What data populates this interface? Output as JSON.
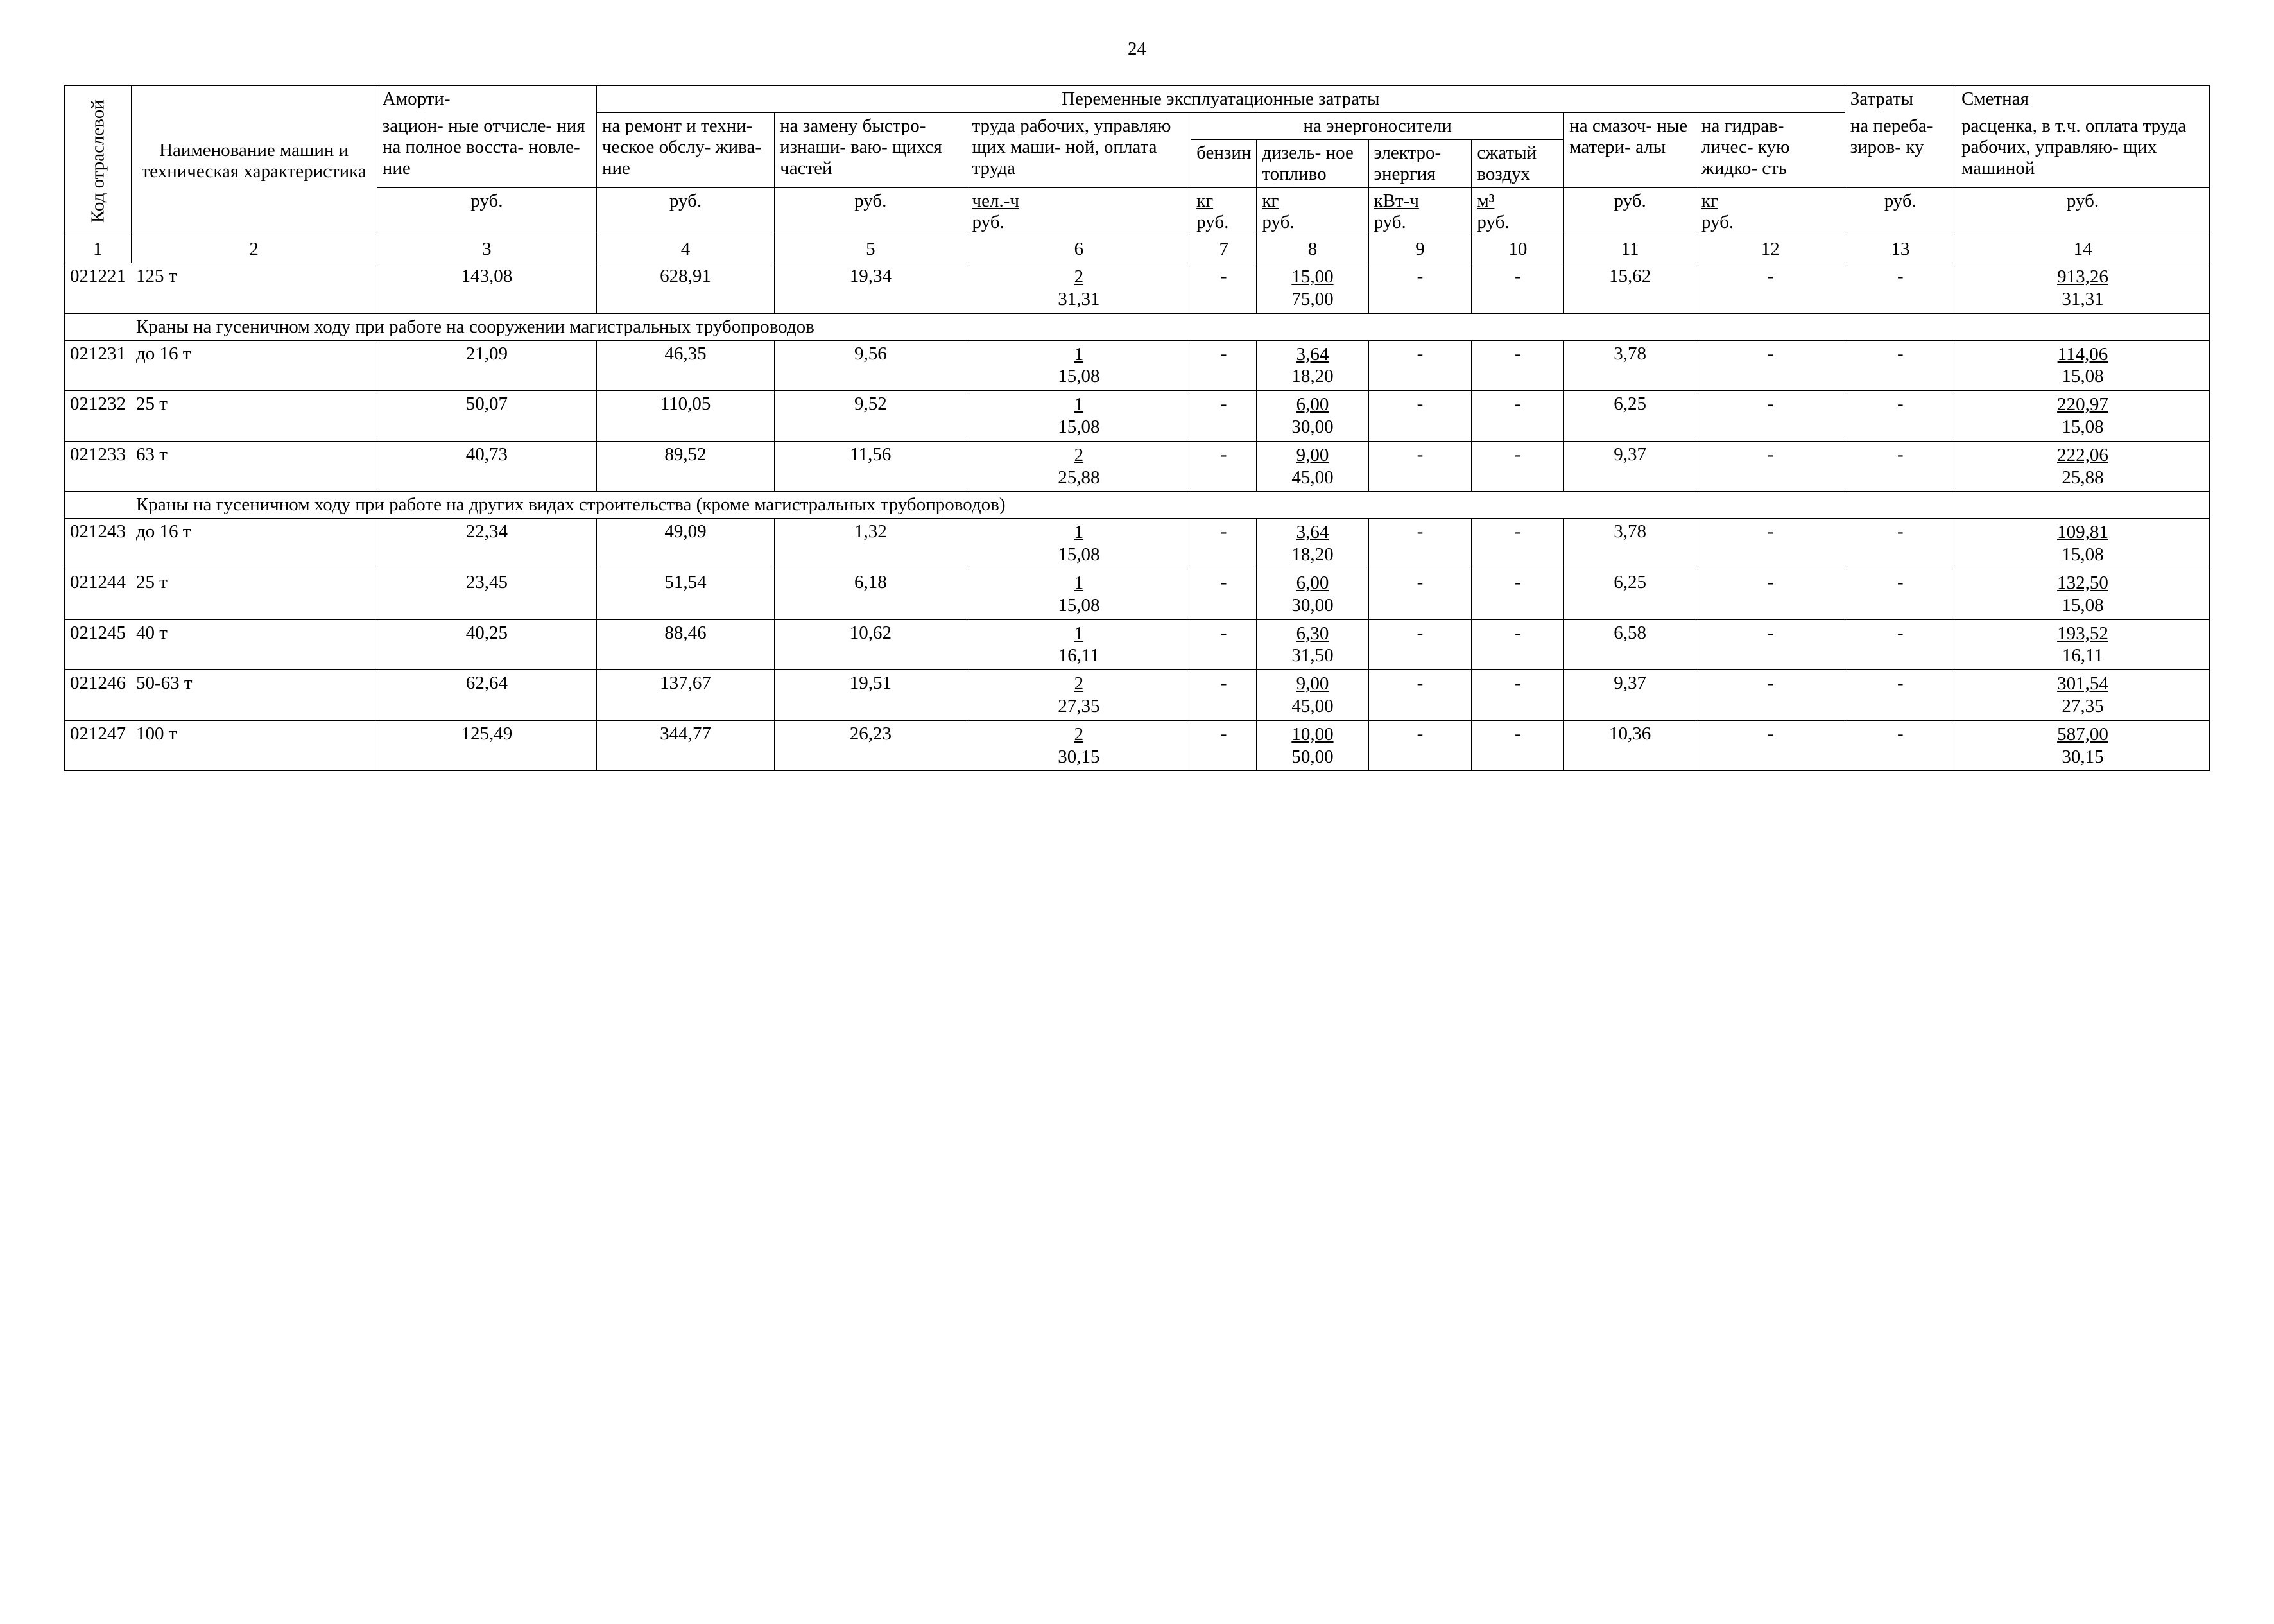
{
  "pageNumber": "24",
  "header": {
    "c1": "Код отраслевой",
    "c2": "Наименование машин и техническая характеристика",
    "c3_top": "Аморти-",
    "c3": "зацион- ные отчисле- ния на полное восста- новле- ние",
    "c3_unit": "руб.",
    "variable_costs": "Переменные эксплуатационные затраты",
    "c4": "на ремонт и техни- ческое обслу- жива- ние",
    "c4_unit": "руб.",
    "c5": "на замену быстро- изнаши- ваю- щихся частей",
    "c5_unit": "руб.",
    "c6": "труда рабочих, управляю щих маши- ной, оплата труда",
    "c6_unit_top": "чел.-ч",
    "c6_unit_bot": "руб.",
    "energy": "на энергоносители",
    "c7": "бензин",
    "c7_unit_top": "кг",
    "c7_unit_bot": "руб.",
    "c8": "дизель- ное топливо",
    "c8_unit_top": "кг",
    "c8_unit_bot": "руб.",
    "c9": "электро- энергия",
    "c9_unit_top": "кВт-ч",
    "c9_unit_bot": "руб.",
    "c10": "сжатый воздух",
    "c10_unit_top": "м³",
    "c10_unit_bot": "руб.",
    "c11": "на смазоч- ные матери- алы",
    "c11_unit": "руб.",
    "c12": "на гидрав- личес- кую жидко- сть",
    "c12_unit_top": "кг",
    "c12_unit_bot": "руб.",
    "c13_top": "Затраты",
    "c13": "на переба- зиров- ку",
    "c13_unit": "руб.",
    "c14_top": "Сметная",
    "c14": "расценка, в т.ч. оплата труда рабочих, управляю- щих машиной",
    "c14_unit": "руб."
  },
  "colnums": [
    "1",
    "2",
    "3",
    "4",
    "5",
    "6",
    "7",
    "8",
    "9",
    "10",
    "11",
    "12",
    "13",
    "14"
  ],
  "sections": [
    {
      "rows": [
        {
          "code": "021221",
          "name": "125 т",
          "c3": "143,08",
          "c4": "628,91",
          "c5": "19,34",
          "c6t": "2",
          "c6b": "31,31",
          "c7": "-",
          "c8t": "15,00",
          "c8b": "75,00",
          "c9": "-",
          "c10": "-",
          "c11": "15,62",
          "c12": "-",
          "c13": "-",
          "c14t": "913,26",
          "c14b": "31,31"
        }
      ]
    },
    {
      "title": "Краны на гусеничном ходу при работе на сооружении магистральных трубопроводов",
      "rows": [
        {
          "code": "021231",
          "name": "до 16 т",
          "c3": "21,09",
          "c4": "46,35",
          "c5": "9,56",
          "c6t": "1",
          "c6b": "15,08",
          "c7": "-",
          "c8t": "3,64",
          "c8b": "18,20",
          "c9": "-",
          "c10": "-",
          "c11": "3,78",
          "c12": "-",
          "c13": "-",
          "c14t": "114,06",
          "c14b": "15,08"
        },
        {
          "code": "021232",
          "name": "25 т",
          "c3": "50,07",
          "c4": "110,05",
          "c5": "9,52",
          "c6t": "1",
          "c6b": "15,08",
          "c7": "-",
          "c8t": "6,00",
          "c8b": "30,00",
          "c9": "-",
          "c10": "-",
          "c11": "6,25",
          "c12": "-",
          "c13": "-",
          "c14t": "220,97",
          "c14b": "15,08"
        },
        {
          "code": "021233",
          "name": "63 т",
          "c3": "40,73",
          "c4": "89,52",
          "c5": "11,56",
          "c6t": "2",
          "c6b": "25,88",
          "c7": "-",
          "c8t": "9,00",
          "c8b": "45,00",
          "c9": "-",
          "c10": "-",
          "c11": "9,37",
          "c12": "-",
          "c13": "-",
          "c14t": "222,06",
          "c14b": "25,88"
        }
      ]
    },
    {
      "title": "Краны на гусеничном ходу при работе на других видах строительства (кроме магистральных трубопроводов)",
      "rows": [
        {
          "code": "021243",
          "name": "до 16 т",
          "c3": "22,34",
          "c4": "49,09",
          "c5": "1,32",
          "c6t": "1",
          "c6b": "15,08",
          "c7": "-",
          "c8t": "3,64",
          "c8b": "18,20",
          "c9": "-",
          "c10": "-",
          "c11": "3,78",
          "c12": "-",
          "c13": "-",
          "c14t": "109,81",
          "c14b": "15,08"
        },
        {
          "code": "021244",
          "name": "25 т",
          "c3": "23,45",
          "c4": "51,54",
          "c5": "6,18",
          "c6t": "1",
          "c6b": "15,08",
          "c7": "-",
          "c8t": "6,00",
          "c8b": "30,00",
          "c9": "-",
          "c10": "-",
          "c11": "6,25",
          "c12": "-",
          "c13": "-",
          "c14t": "132,50",
          "c14b": "15,08"
        },
        {
          "code": "021245",
          "name": "40 т",
          "c3": "40,25",
          "c4": "88,46",
          "c5": "10,62",
          "c6t": "1",
          "c6b": "16,11",
          "c7": "-",
          "c8t": "6,30",
          "c8b": "31,50",
          "c9": "-",
          "c10": "-",
          "c11": "6,58",
          "c12": "-",
          "c13": "-",
          "c14t": "193,52",
          "c14b": "16,11"
        },
        {
          "code": "021246",
          "name": "50-63 т",
          "c3": "62,64",
          "c4": "137,67",
          "c5": "19,51",
          "c6t": "2",
          "c6b": "27,35",
          "c7": "-",
          "c8t": "9,00",
          "c8b": "45,00",
          "c9": "-",
          "c10": "-",
          "c11": "9,37",
          "c12": "-",
          "c13": "-",
          "c14t": "301,54",
          "c14b": "27,35"
        },
        {
          "code": "021247",
          "name": "100 т",
          "c3": "125,49",
          "c4": "344,77",
          "c5": "26,23",
          "c6t": "2",
          "c6b": "30,15",
          "c7": "-",
          "c8t": "10,00",
          "c8b": "50,00",
          "c9": "-",
          "c10": "-",
          "c11": "10,36",
          "c12": "-",
          "c13": "-",
          "c14t": "587,00",
          "c14b": "30,15"
        }
      ]
    }
  ]
}
